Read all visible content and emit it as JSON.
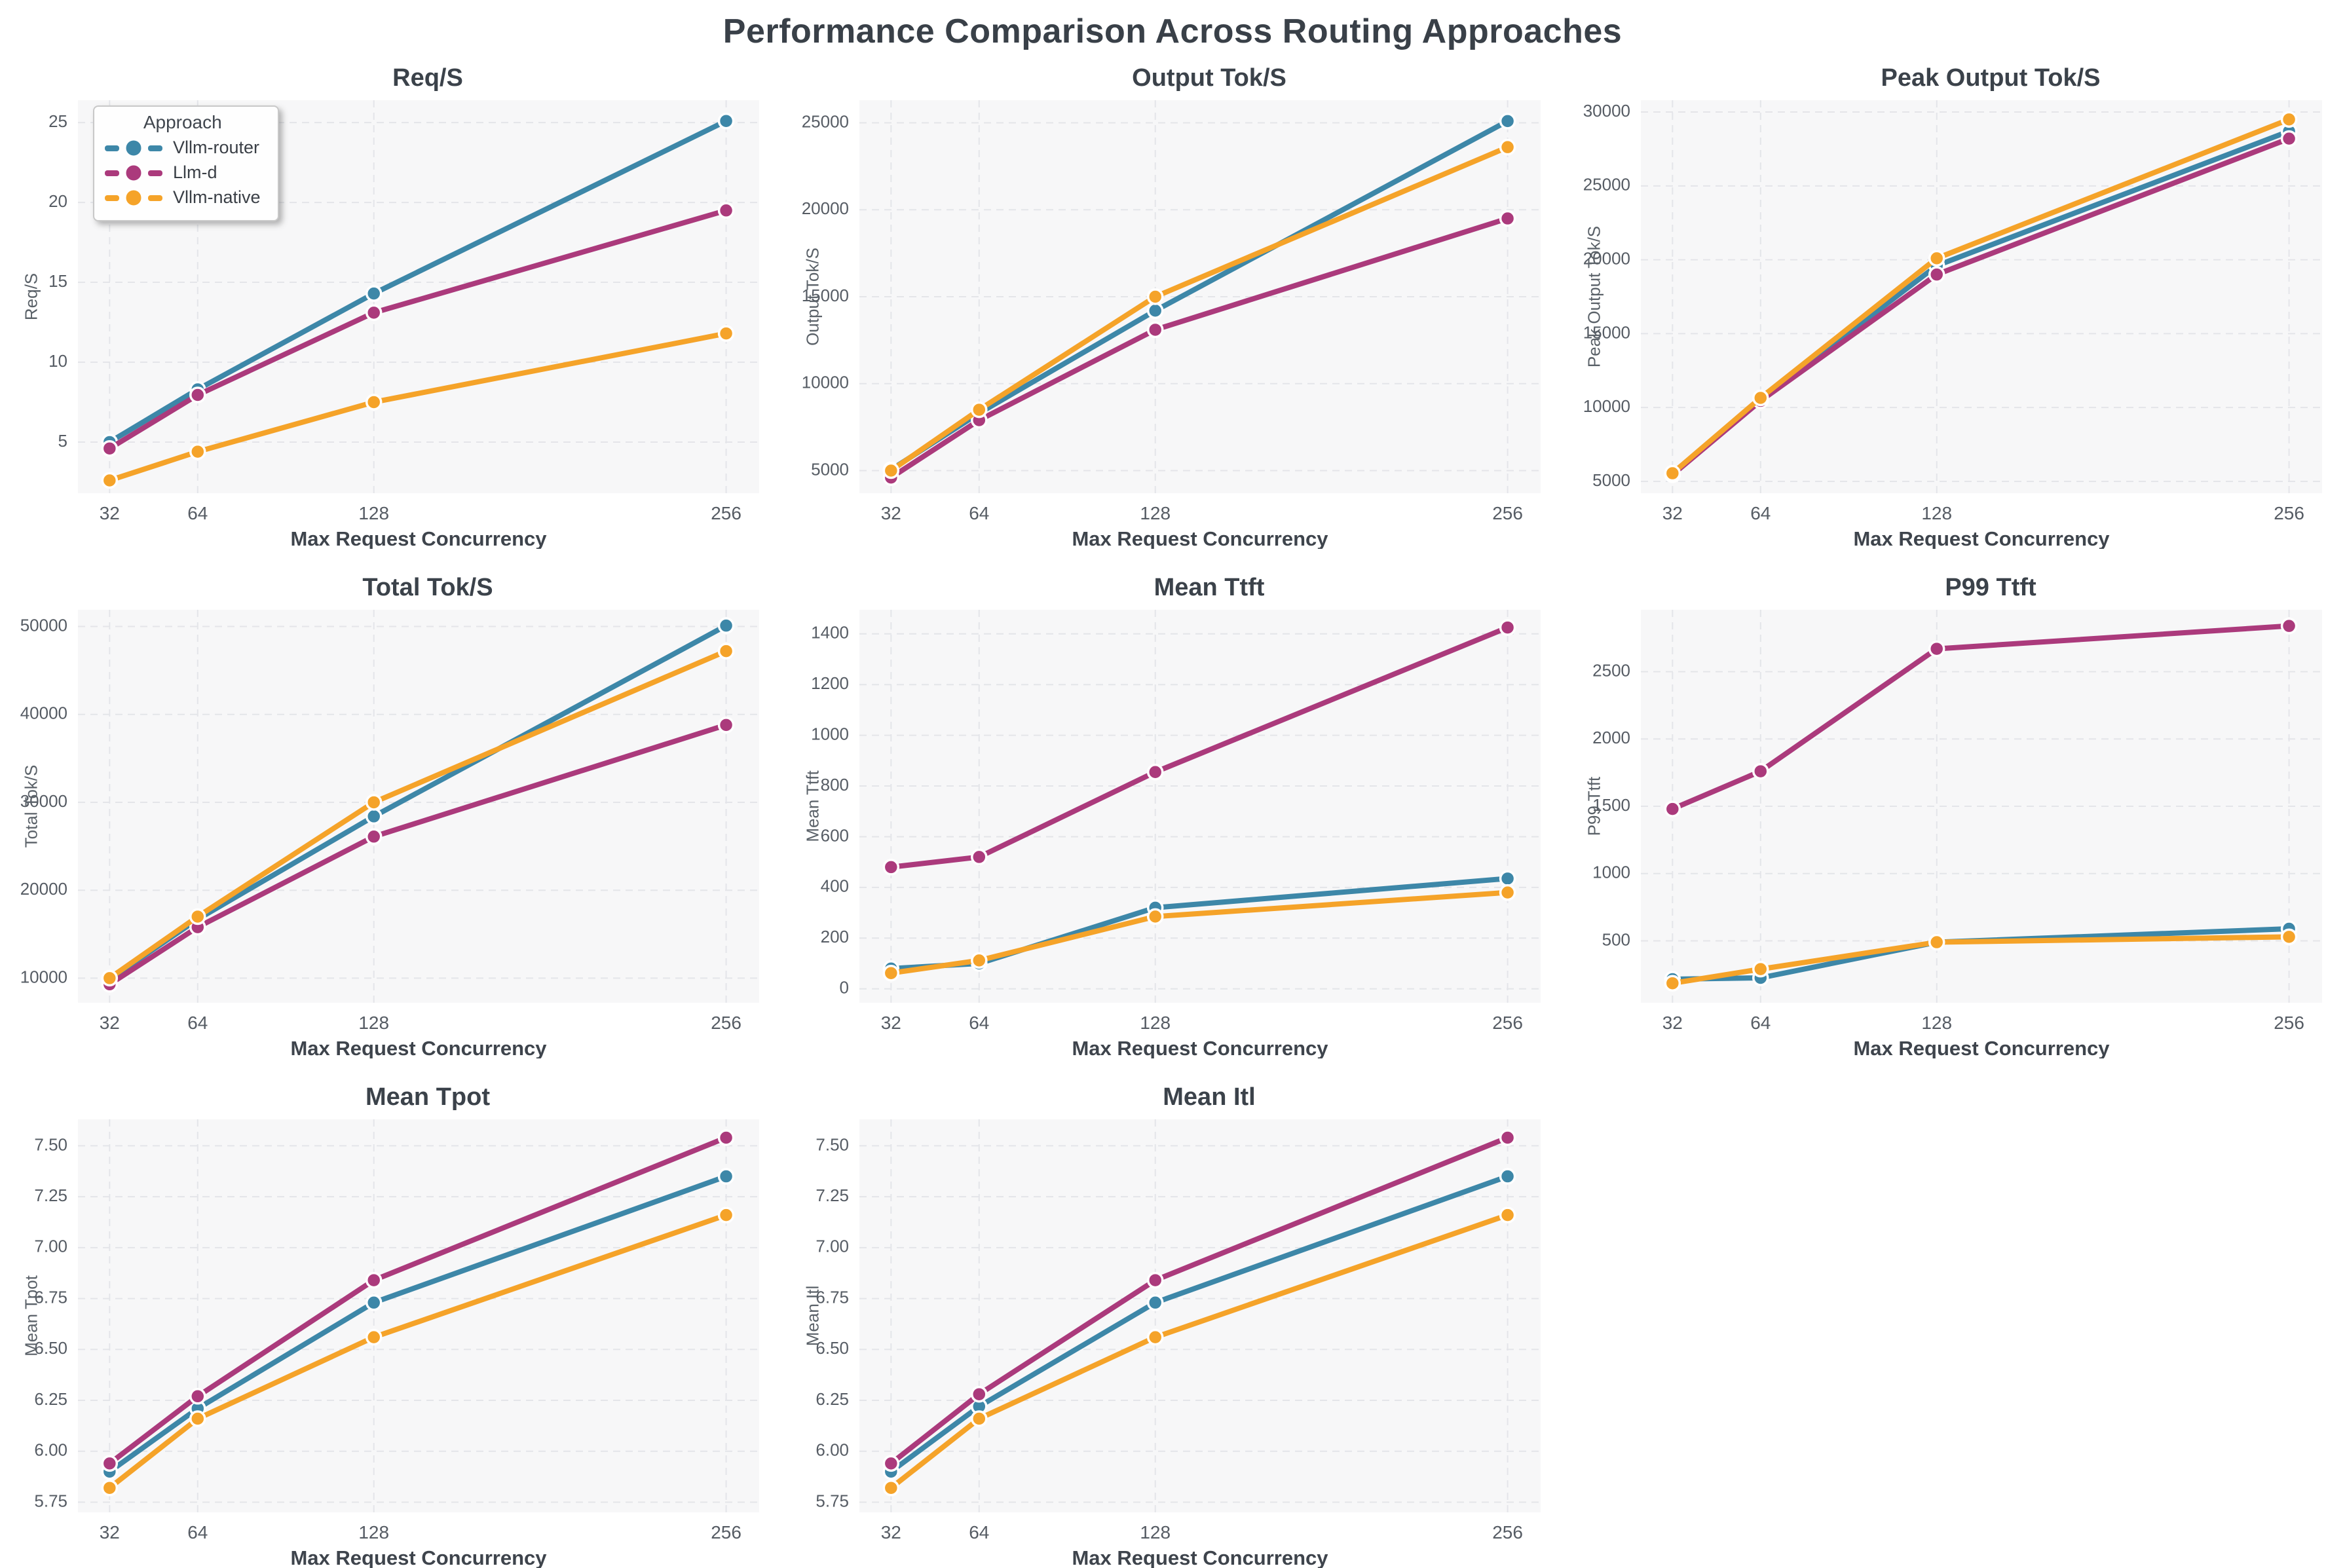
{
  "page_title": "Performance Comparison Across Routing Approaches",
  "x_label": "Max Request Concurrency",
  "x_ticks": [
    32,
    64,
    128,
    256
  ],
  "legend": {
    "title": "Approach",
    "entries": [
      {
        "label": "Vllm-router",
        "color": "#3d87a8"
      },
      {
        "label": "Llm-d",
        "color": "#ab3a7c"
      },
      {
        "label": "Vllm-native",
        "color": "#f5a329"
      }
    ]
  },
  "chart_data": [
    {
      "id": "req-s",
      "type": "line",
      "title": "Req/S",
      "ylabel": "Req/S",
      "xlabel": "Max Request Concurrency",
      "x": [
        32,
        64,
        128,
        256
      ],
      "ylim": [
        1.8,
        26.4
      ],
      "yticks": [
        5,
        10,
        15,
        20,
        25
      ],
      "ytick_decimals": 0,
      "grid": true,
      "show_legend": true,
      "legend_position": "upper-left",
      "series": [
        {
          "name": "Vllm-router",
          "values": [
            5.0,
            8.3,
            14.3,
            25.1
          ]
        },
        {
          "name": "Llm-d",
          "values": [
            4.6,
            7.95,
            13.1,
            19.5
          ]
        },
        {
          "name": "Vllm-native",
          "values": [
            2.6,
            4.4,
            7.5,
            11.8
          ]
        }
      ]
    },
    {
      "id": "output-tok-s",
      "type": "line",
      "title": "Output Tok/S",
      "ylabel": "Output Tok/S",
      "xlabel": "Max Request Concurrency",
      "x": [
        32,
        64,
        128,
        256
      ],
      "ylim": [
        3700,
        26300
      ],
      "yticks": [
        5000,
        10000,
        15000,
        20000,
        25000
      ],
      "ytick_decimals": 0,
      "grid": true,
      "show_legend": false,
      "series": [
        {
          "name": "Vllm-router",
          "values": [
            5050,
            8300,
            14200,
            25100
          ]
        },
        {
          "name": "Llm-d",
          "values": [
            4600,
            7900,
            13100,
            19500
          ]
        },
        {
          "name": "Vllm-native",
          "values": [
            5000,
            8500,
            15000,
            23600
          ]
        }
      ]
    },
    {
      "id": "peak-output-tok-s",
      "type": "line",
      "title": "Peak Output Tok/S",
      "ylabel": "Peak Output Tok/S",
      "xlabel": "Max Request Concurrency",
      "x": [
        32,
        64,
        128,
        256
      ],
      "ylim": [
        4200,
        30800
      ],
      "yticks": [
        5000,
        10000,
        15000,
        20000,
        25000,
        30000
      ],
      "ytick_decimals": 0,
      "grid": true,
      "show_legend": false,
      "series": [
        {
          "name": "Vllm-router",
          "values": [
            5500,
            10500,
            19600,
            28700
          ]
        },
        {
          "name": "Llm-d",
          "values": [
            5450,
            10450,
            19000,
            28200
          ]
        },
        {
          "name": "Vllm-native",
          "values": [
            5550,
            10650,
            20100,
            29500
          ]
        }
      ]
    },
    {
      "id": "total-tok-s",
      "type": "line",
      "title": "Total Tok/S",
      "ylabel": "Total Tok/S",
      "xlabel": "Max Request Concurrency",
      "x": [
        32,
        64,
        128,
        256
      ],
      "ylim": [
        7200,
        51900
      ],
      "yticks": [
        10000,
        20000,
        30000,
        40000,
        50000
      ],
      "ytick_decimals": 0,
      "grid": true,
      "show_legend": false,
      "series": [
        {
          "name": "Vllm-router",
          "values": [
            9900,
            16700,
            28400,
            50100
          ]
        },
        {
          "name": "Llm-d",
          "values": [
            9300,
            15800,
            26100,
            38800
          ]
        },
        {
          "name": "Vllm-native",
          "values": [
            10000,
            17000,
            30000,
            47200
          ]
        }
      ]
    },
    {
      "id": "mean-ttft",
      "type": "line",
      "title": "Mean Ttft",
      "ylabel": "Mean Ttft",
      "xlabel": "Max Request Concurrency",
      "x": [
        32,
        64,
        128,
        256
      ],
      "ylim": [
        -55,
        1495
      ],
      "yticks": [
        0,
        200,
        400,
        600,
        800,
        1000,
        1200,
        1400
      ],
      "ytick_decimals": 0,
      "grid": true,
      "show_legend": false,
      "series": [
        {
          "name": "Vllm-router",
          "values": [
            80,
            100,
            320,
            435
          ]
        },
        {
          "name": "Llm-d",
          "values": [
            480,
            520,
            855,
            1425
          ]
        },
        {
          "name": "Vllm-native",
          "values": [
            62,
            112,
            285,
            380
          ]
        }
      ]
    },
    {
      "id": "p99-ttft",
      "type": "line",
      "title": "P99 Ttft",
      "ylabel": "P99 Ttft",
      "xlabel": "Max Request Concurrency",
      "x": [
        32,
        64,
        128,
        256
      ],
      "ylim": [
        40,
        2960
      ],
      "yticks": [
        500,
        1000,
        1500,
        2000,
        2500
      ],
      "ytick_decimals": 0,
      "grid": true,
      "show_legend": false,
      "series": [
        {
          "name": "Vllm-router",
          "values": [
            215,
            225,
            490,
            590
          ]
        },
        {
          "name": "Llm-d",
          "values": [
            1480,
            1760,
            2670,
            2840
          ]
        },
        {
          "name": "Vllm-native",
          "values": [
            185,
            290,
            490,
            530
          ]
        }
      ]
    },
    {
      "id": "mean-tpot",
      "type": "line",
      "title": "Mean Tpot",
      "ylabel": "Mean Tpot",
      "xlabel": "Max Request Concurrency",
      "x": [
        32,
        64,
        128,
        256
      ],
      "ylim": [
        5.7,
        7.63
      ],
      "yticks": [
        5.75,
        6.0,
        6.25,
        6.5,
        6.75,
        7.0,
        7.25,
        7.5
      ],
      "ytick_decimals": 2,
      "grid": true,
      "show_legend": false,
      "series": [
        {
          "name": "Vllm-router",
          "values": [
            5.9,
            6.21,
            6.73,
            7.35
          ]
        },
        {
          "name": "Llm-d",
          "values": [
            5.94,
            6.27,
            6.84,
            7.54
          ]
        },
        {
          "name": "Vllm-native",
          "values": [
            5.82,
            6.16,
            6.56,
            7.16
          ]
        }
      ]
    },
    {
      "id": "mean-itl",
      "type": "line",
      "title": "Mean Itl",
      "ylabel": "Mean Itl",
      "xlabel": "Max Request Concurrency",
      "x": [
        32,
        64,
        128,
        256
      ],
      "ylim": [
        5.7,
        7.63
      ],
      "yticks": [
        5.75,
        6.0,
        6.25,
        6.5,
        6.75,
        7.0,
        7.25,
        7.5
      ],
      "ytick_decimals": 2,
      "grid": true,
      "show_legend": false,
      "series": [
        {
          "name": "Vllm-router",
          "values": [
            5.9,
            6.22,
            6.73,
            7.35
          ]
        },
        {
          "name": "Llm-d",
          "values": [
            5.94,
            6.28,
            6.84,
            7.54
          ]
        },
        {
          "name": "Vllm-native",
          "values": [
            5.82,
            6.16,
            6.56,
            7.16
          ]
        }
      ]
    }
  ]
}
